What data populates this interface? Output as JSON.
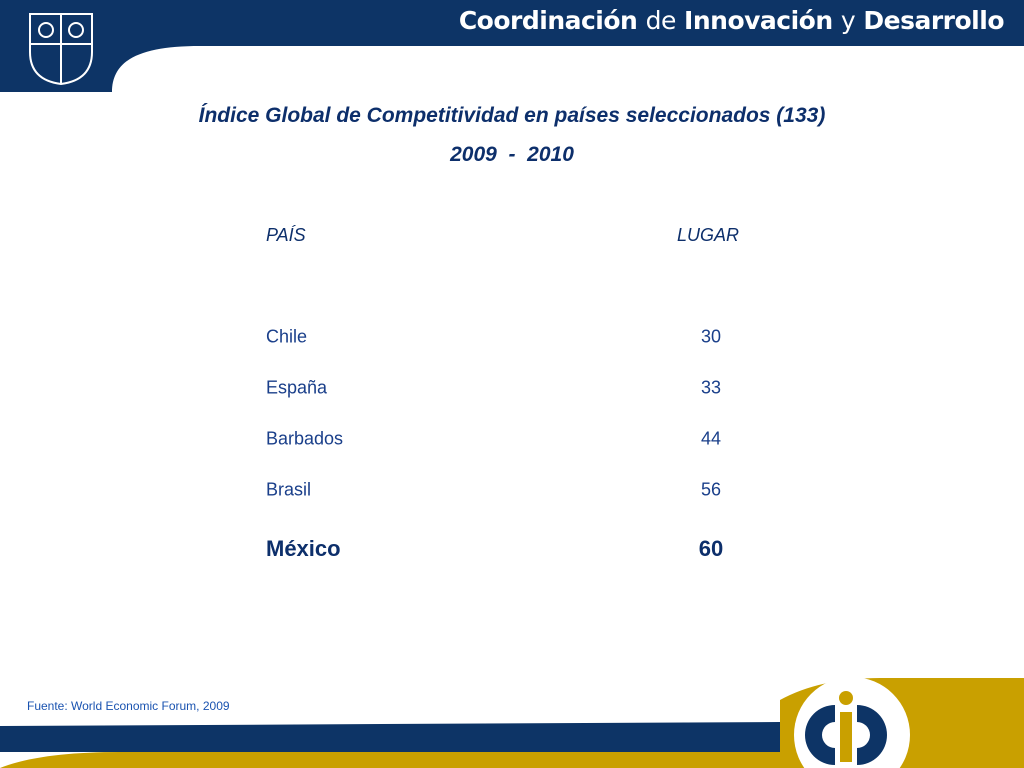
{
  "header": {
    "title_parts": [
      "Coordinación",
      "de",
      "Innovación",
      "y",
      "Desarrollo"
    ]
  },
  "title": "Índice Global de Competitividad en países seleccionados (133)",
  "subtitle": "2009  -  2010",
  "table": {
    "columns": [
      "PAÍS",
      "LUGAR"
    ],
    "rows": [
      [
        "Chile",
        30
      ],
      [
        "España",
        33
      ],
      [
        "Barbados",
        44
      ],
      [
        "Brasil",
        56
      ],
      [
        "México",
        60
      ]
    ]
  },
  "footer": {
    "source": "Fuente: World Economic Forum, 2009"
  }
}
